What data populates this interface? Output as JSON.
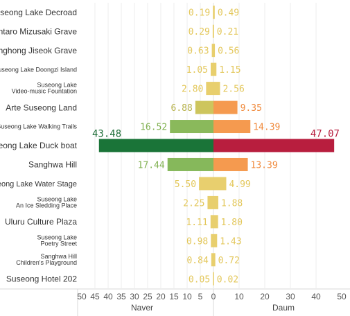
{
  "chart_data": {
    "type": "bar",
    "categories": [
      "Suseong Lake Decroad",
      "Rintaro Mizusaki Grave",
      "Sanghong Jiseok Grave",
      "Suseong Lake Doongzi Island",
      "Suseong Lake\nVideo-music Fountation",
      "Arte Suseong Land",
      "Suseong Lake Walking Trails",
      "Suseong Lake Duck boat",
      "Sanghwa Hill",
      "Suseong Lake Water Stage",
      "Suseong Lake\nAn Ice Sledding Place",
      "Uluru Culture Plaza",
      "Suseong Lake\nPoetry Street",
      "Sanghwa Hill\nChildren's Playground",
      "Suseong Hotel 202"
    ],
    "series": [
      {
        "name": "Naver",
        "values": [
          0.19,
          0.29,
          0.63,
          1.05,
          2.8,
          6.88,
          16.52,
          43.48,
          17.44,
          5.5,
          2.25,
          1.11,
          0.98,
          0.84,
          0.05
        ],
        "labels": [
          "0.19",
          "0.29",
          "0.63",
          "1.05",
          "2.80",
          "6.88",
          "16.52",
          "43.48",
          "17.44",
          "5.50",
          "2.25",
          "1.11",
          "0.98",
          "0.84",
          "0.05"
        ],
        "colors": [
          "#e8cf6e",
          "#e8cf6e",
          "#e8cf6e",
          "#e8cf6e",
          "#e8cf6e",
          "#cdc55d",
          "#8ab95b",
          "#1a7438",
          "#86b85b",
          "#e8cf6e",
          "#e8cf6e",
          "#e8cf6e",
          "#e8cf6e",
          "#e8cf6e",
          "#e8cf6e"
        ],
        "label_colors": [
          "#e3c75a",
          "#e3c75a",
          "#e3c75a",
          "#e3c75a",
          "#e3c75a",
          "#b7b24c",
          "#7fb04f",
          "#1e6e38",
          "#7fb04f",
          "#e3c75a",
          "#e3c75a",
          "#e3c75a",
          "#e3c75a",
          "#e3c75a",
          "#e3c75a"
        ]
      },
      {
        "name": "Daum",
        "values": [
          0.49,
          0.21,
          0.56,
          1.15,
          2.56,
          9.35,
          14.39,
          47.07,
          13.39,
          4.99,
          1.88,
          1.8,
          1.43,
          0.72,
          0.02
        ],
        "labels": [
          "0.49",
          "0.21",
          "0.56",
          "1.15",
          "2.56",
          "9.35",
          "14.39",
          "47.07",
          "13.39",
          "4.99",
          "1.88",
          "1.80",
          "1.43",
          "0.72",
          "0.02"
        ],
        "colors": [
          "#e8cf6e",
          "#e8cf6e",
          "#e8cf6e",
          "#e8cf6e",
          "#e8cf6e",
          "#f59a4f",
          "#f59a4f",
          "#b81e3e",
          "#f59a4f",
          "#e8cf6e",
          "#e8cf6e",
          "#e8cf6e",
          "#e8cf6e",
          "#e8cf6e",
          "#e8cf6e"
        ],
        "label_colors": [
          "#e3c75a",
          "#e3c75a",
          "#e3c75a",
          "#e3c75a",
          "#e3c75a",
          "#f08a3c",
          "#f08a3c",
          "#b81e3e",
          "#f08a3c",
          "#e3c75a",
          "#e3c75a",
          "#e3c75a",
          "#e3c75a",
          "#e3c75a",
          "#e3c75a"
        ]
      }
    ],
    "left_axis": {
      "title": "Naver",
      "ticks": [
        "50",
        "45",
        "40",
        "35",
        "30",
        "25",
        "20",
        "15",
        "10",
        "5",
        "0"
      ],
      "range": [
        50,
        0
      ]
    },
    "right_axis": {
      "title": "Daum",
      "ticks": [
        "0",
        "10",
        "20",
        "30",
        "40",
        "50"
      ],
      "range": [
        0,
        50
      ]
    },
    "grid": true,
    "layout": "butterfly"
  }
}
